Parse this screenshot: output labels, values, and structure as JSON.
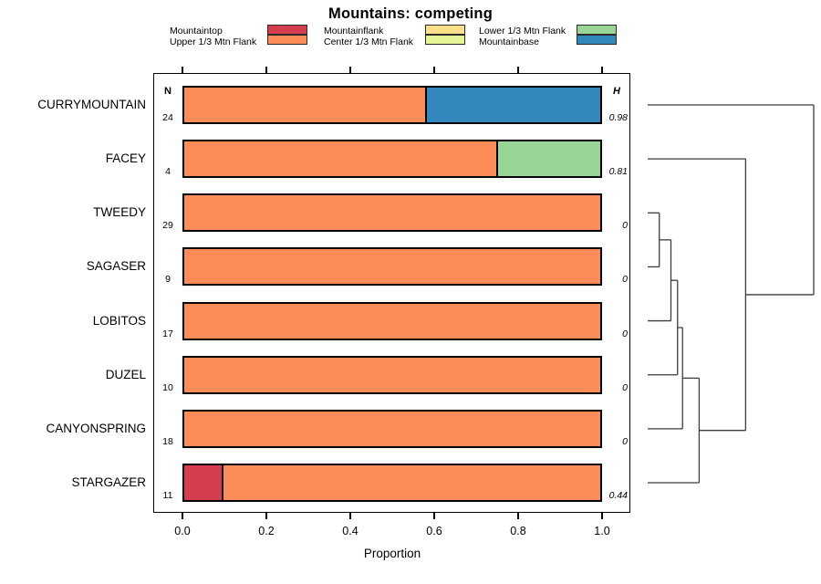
{
  "title": "Mountains: competing",
  "xlabel": "Proportion",
  "columns": {
    "n_header": "N",
    "h_header": "H"
  },
  "x_ticks": [
    "0.0",
    "0.2",
    "0.4",
    "0.6",
    "0.8",
    "1.0"
  ],
  "chart_data": {
    "type": "bar",
    "stacked": true,
    "orientation": "horizontal",
    "title": "Mountains: competing",
    "xlabel": "Proportion",
    "xlim": [
      0,
      1
    ],
    "legend_position": "top",
    "categories": [
      "Mountaintop",
      "Upper 1/3 Mtn Flank",
      "Mountainflank",
      "Center 1/3 Mtn Flank",
      "Lower 1/3 Mtn Flank",
      "Mountainbase"
    ],
    "colors": [
      "#d53e4f",
      "#fc8d59",
      "#fee08b",
      "#e6f598",
      "#99d594",
      "#3288bd"
    ],
    "rows": [
      {
        "label": "CURRYMOUNTAIN",
        "n": "24",
        "h": "0.98",
        "segments": [
          {
            "category": "Upper 1/3 Mtn Flank",
            "ci": 1,
            "value": 0.58
          },
          {
            "category": "Mountainbase",
            "ci": 5,
            "value": 0.42
          }
        ]
      },
      {
        "label": "FACEY",
        "n": "4",
        "h": "0.81",
        "segments": [
          {
            "category": "Upper 1/3 Mtn Flank",
            "ci": 1,
            "value": 0.75
          },
          {
            "category": "Lower 1/3 Mtn Flank",
            "ci": 4,
            "value": 0.25
          }
        ]
      },
      {
        "label": "TWEEDY",
        "n": "29",
        "h": "0",
        "segments": [
          {
            "category": "Upper 1/3 Mtn Flank",
            "ci": 1,
            "value": 1.0
          }
        ]
      },
      {
        "label": "SAGASER",
        "n": "9",
        "h": "0",
        "segments": [
          {
            "category": "Upper 1/3 Mtn Flank",
            "ci": 1,
            "value": 1.0
          }
        ]
      },
      {
        "label": "LOBITOS",
        "n": "17",
        "h": "0",
        "segments": [
          {
            "category": "Upper 1/3 Mtn Flank",
            "ci": 1,
            "value": 1.0
          }
        ]
      },
      {
        "label": "DUZEL",
        "n": "10",
        "h": "0",
        "segments": [
          {
            "category": "Upper 1/3 Mtn Flank",
            "ci": 1,
            "value": 1.0
          }
        ]
      },
      {
        "label": "CANYONSPRING",
        "n": "18",
        "h": "0",
        "segments": [
          {
            "category": "Upper 1/3 Mtn Flank",
            "ci": 1,
            "value": 1.0
          }
        ]
      },
      {
        "label": "STARGAZER",
        "n": "11",
        "h": "0.44",
        "segments": [
          {
            "category": "Mountaintop",
            "ci": 0,
            "value": 0.09
          },
          {
            "category": "Upper 1/3 Mtn Flank",
            "ci": 1,
            "value": 0.91
          }
        ]
      }
    ],
    "dendrogram": {
      "side": "right",
      "tree": {
        "height": 1.0,
        "children": [
          {
            "leaf": "CURRYMOUNTAIN"
          },
          {
            "height": 0.59,
            "children": [
              {
                "leaf": "FACEY"
              },
              {
                "height": 0.31,
                "children": [
                  {
                    "height": 0.21,
                    "children": [
                      {
                        "height": 0.18,
                        "children": [
                          {
                            "height": 0.14,
                            "children": [
                              {
                                "height": 0.07,
                                "children": [
                                  {
                                    "leaf": "TWEEDY"
                                  },
                                  {
                                    "leaf": "SAGASER"
                                  }
                                ]
                              },
                              {
                                "leaf": "LOBITOS"
                              }
                            ]
                          },
                          {
                            "leaf": "DUZEL"
                          }
                        ]
                      },
                      {
                        "leaf": "CANYONSPRING"
                      }
                    ]
                  },
                  {
                    "leaf": "STARGAZER"
                  }
                ]
              }
            ]
          }
        ]
      }
    }
  }
}
